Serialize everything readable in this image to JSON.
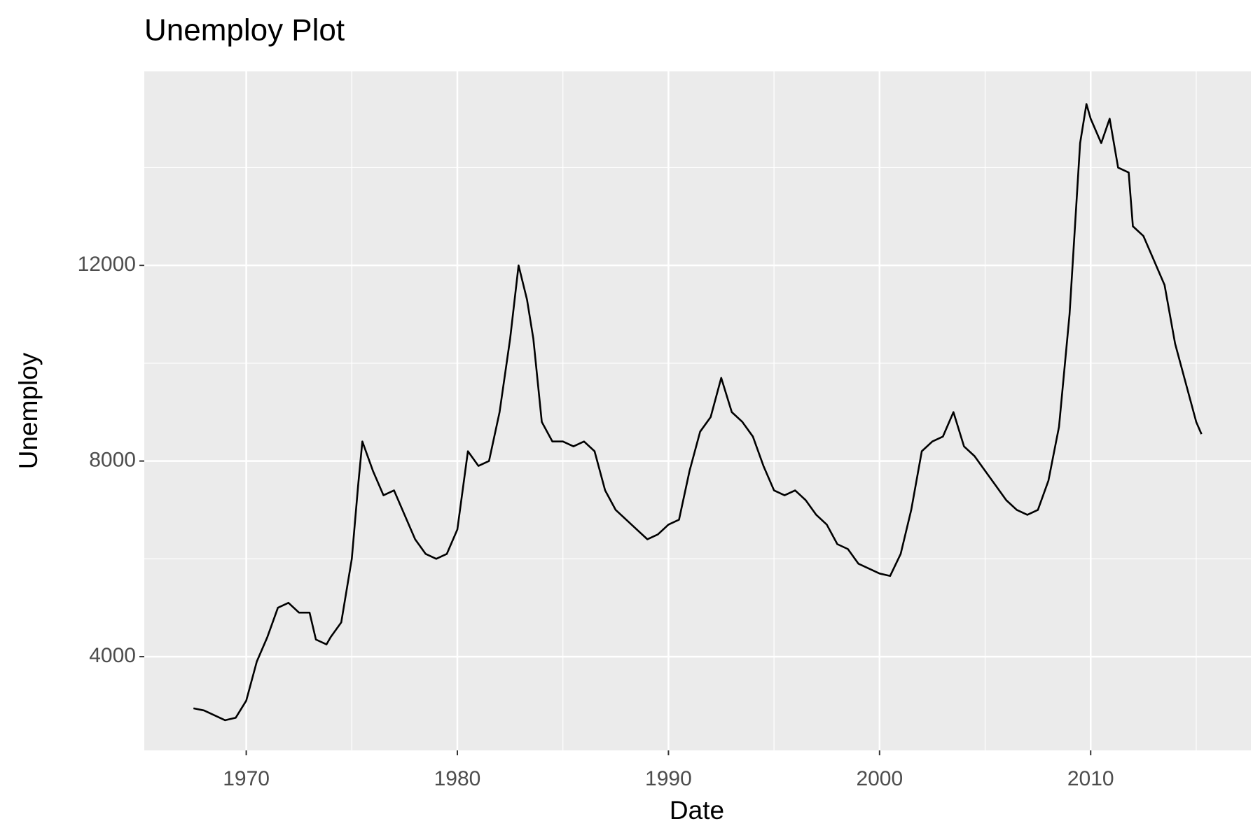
{
  "chart_data": {
    "type": "line",
    "title": "Unemploy Plot",
    "x_label": "Date",
    "y_label": "Unemploy",
    "x": [
      1967.5,
      1968.0,
      1968.5,
      1969.0,
      1969.5,
      1970.0,
      1970.5,
      1971.0,
      1971.5,
      1972.0,
      1972.5,
      1973.0,
      1973.3,
      1973.8,
      1974.0,
      1974.5,
      1975.0,
      1975.3,
      1975.5,
      1976.0,
      1976.5,
      1977.0,
      1977.5,
      1978.0,
      1978.5,
      1979.0,
      1979.5,
      1980.0,
      1980.5,
      1981.0,
      1981.5,
      1982.0,
      1982.5,
      1982.9,
      1983.3,
      1983.6,
      1984.0,
      1984.5,
      1985.0,
      1985.5,
      1986.0,
      1986.5,
      1987.0,
      1987.5,
      1988.0,
      1988.5,
      1989.0,
      1989.5,
      1990.0,
      1990.5,
      1991.0,
      1991.5,
      1992.0,
      1992.5,
      1993.0,
      1993.5,
      1994.0,
      1994.5,
      1995.0,
      1995.5,
      1996.0,
      1996.5,
      1997.0,
      1997.5,
      1998.0,
      1998.5,
      1999.0,
      1999.5,
      2000.0,
      2000.5,
      2001.0,
      2001.5,
      2002.0,
      2002.5,
      2003.0,
      2003.5,
      2004.0,
      2004.5,
      2005.0,
      2005.5,
      2006.0,
      2006.5,
      2007.0,
      2007.5,
      2008.0,
      2008.5,
      2009.0,
      2009.5,
      2009.8,
      2010.0,
      2010.5,
      2010.9,
      2011.3,
      2011.8,
      2012.0,
      2012.5,
      2013.0,
      2013.5,
      2014.0,
      2014.5,
      2015.0,
      2015.25
    ],
    "series": [
      {
        "name": "unemploy",
        "color": "#000000",
        "values": [
          2944,
          2900,
          2800,
          2700,
          2750,
          3100,
          3900,
          4400,
          5000,
          5100,
          4900,
          4900,
          4350,
          4250,
          4400,
          4700,
          6000,
          7500,
          8400,
          7800,
          7300,
          7400,
          6900,
          6400,
          6100,
          6000,
          6100,
          6600,
          8200,
          7900,
          8000,
          9000,
          10500,
          12000,
          11300,
          10500,
          8800,
          8400,
          8400,
          8300,
          8400,
          8200,
          7400,
          7000,
          6800,
          6600,
          6400,
          6500,
          6700,
          6800,
          7800,
          8600,
          8900,
          9700,
          9000,
          8800,
          8500,
          7900,
          7400,
          7300,
          7400,
          7200,
          6900,
          6700,
          6300,
          6200,
          5900,
          5800,
          5700,
          5650,
          6100,
          7000,
          8200,
          8400,
          8500,
          9000,
          8300,
          8100,
          7800,
          7500,
          7200,
          7000,
          6900,
          7000,
          7600,
          8700,
          11000,
          14500,
          15300,
          15000,
          14500,
          15000,
          14000,
          13900,
          12800,
          12600,
          12100,
          11600,
          10400,
          9600,
          8800,
          8550
        ]
      }
    ],
    "xlim": [
      1965.17,
      2017.59
    ],
    "xticks": [
      1970,
      1980,
      1990,
      2000,
      2010
    ],
    "xminor_ticks": [
      1975,
      1985,
      1995,
      2005,
      2015
    ],
    "ylim": [
      2083,
      15967
    ],
    "yticks": [
      4000,
      8000,
      12000
    ],
    "yminor_ticks": [
      6000,
      10000,
      14000
    ],
    "grid": true,
    "panel_color": "#ebebeb",
    "grid_color": "#ffffff"
  }
}
